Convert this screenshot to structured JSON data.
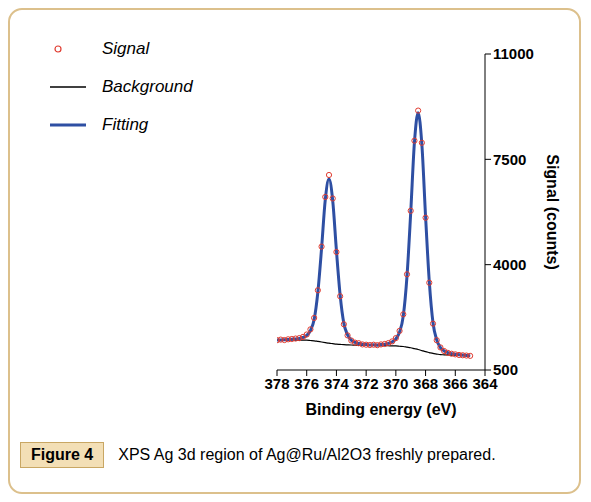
{
  "chart_data": {
    "type": "line",
    "title": "XPS Ag 3d region of Ag@Ru/Al2O3 freshly prepared.",
    "annotations": [
      "Figure 4"
    ],
    "x_label": "Binding energy (eV)",
    "y_label": "Signal (counts)",
    "x": [
      378,
      377.75,
      377.5,
      377.25,
      377,
      376.75,
      376.5,
      376.25,
      376,
      375.75,
      375.5,
      375.25,
      375,
      374.75,
      374.5,
      374.25,
      374,
      373.75,
      373.5,
      373.25,
      373,
      372.75,
      372.5,
      372.25,
      372,
      371.75,
      371.5,
      371.25,
      371,
      370.75,
      370.5,
      370.25,
      370,
      369.75,
      369.5,
      369.25,
      369,
      368.75,
      368.5,
      368.25,
      368,
      367.75,
      367.5,
      367.25,
      367,
      366.75,
      366.5,
      366.25,
      366,
      365.75,
      365.5,
      365.25,
      365
    ],
    "series": [
      {
        "name": "Signal",
        "type": "scatter",
        "marker": "circle",
        "color": "#e03c31",
        "values": [
          1490,
          1510,
          1495,
          1520,
          1530,
          1545,
          1560,
          1600,
          1680,
          1850,
          2230,
          3150,
          4600,
          6250,
          6980,
          6200,
          4420,
          2950,
          2020,
          1650,
          1480,
          1410,
          1390,
          1350,
          1340,
          1330,
          1340,
          1325,
          1350,
          1365,
          1395,
          1450,
          1560,
          1800,
          2350,
          3680,
          5790,
          8120,
          9120,
          8050,
          5560,
          3400,
          2040,
          1490,
          1250,
          1130,
          1070,
          1040,
          1020,
          1000,
          990,
          980,
          970
        ]
      },
      {
        "name": "Background",
        "type": "line",
        "color": "#000000",
        "values": [
          1500,
          1500,
          1500,
          1500,
          1500,
          1495,
          1495,
          1490,
          1490,
          1480,
          1470,
          1450,
          1430,
          1410,
          1390,
          1375,
          1360,
          1350,
          1340,
          1335,
          1330,
          1328,
          1325,
          1322,
          1320,
          1318,
          1315,
          1312,
          1310,
          1308,
          1305,
          1302,
          1300,
          1290,
          1280,
          1260,
          1240,
          1210,
          1180,
          1145,
          1110,
          1080,
          1050,
          1030,
          1010,
          1005,
          1000,
          995,
          990,
          985,
          980,
          975,
          970
        ]
      },
      {
        "name": "Fitting",
        "type": "line",
        "color": "#2e4fa3",
        "values": [
          1500,
          1500,
          1505,
          1510,
          1525,
          1530,
          1550,
          1580,
          1650,
          1810,
          2180,
          3090,
          4540,
          6160,
          6850,
          6125,
          4470,
          2990,
          2050,
          1665,
          1490,
          1418,
          1380,
          1357,
          1345,
          1333,
          1335,
          1332,
          1345,
          1358,
          1385,
          1432,
          1535,
          1760,
          2300,
          3620,
          5730,
          8060,
          9050,
          7995,
          5600,
          3440,
          2070,
          1500,
          1245,
          1135,
          1080,
          1045,
          1025,
          1010,
          995,
          985,
          975
        ]
      }
    ],
    "xlim": [
      378,
      364
    ],
    "xticks": [
      378,
      376,
      374,
      372,
      370,
      368,
      366,
      364
    ],
    "ylim": [
      500,
      11000
    ],
    "yticks": [
      500,
      4000,
      7500,
      11000
    ],
    "grid": false,
    "legend": "top-left"
  }
}
